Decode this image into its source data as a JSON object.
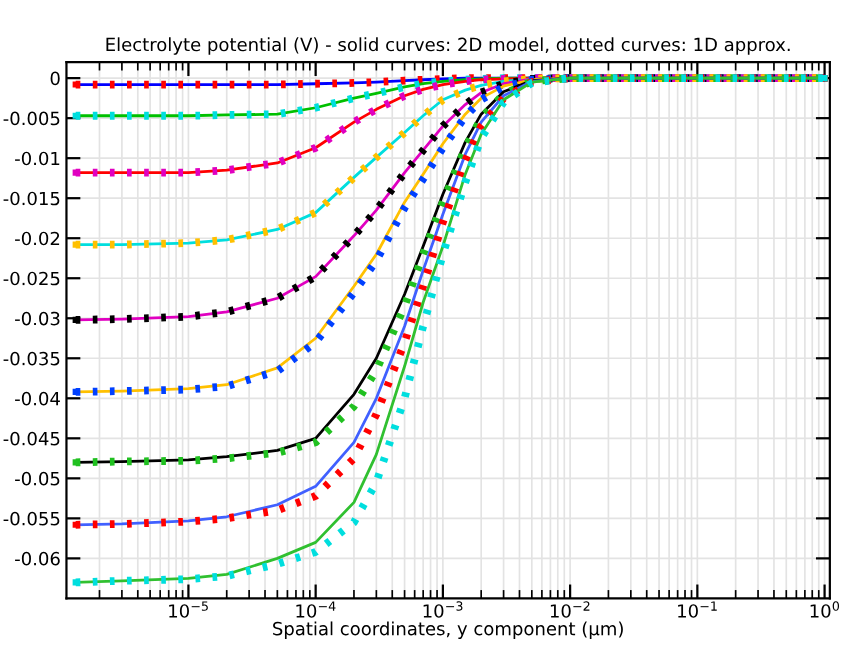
{
  "chart_data": {
    "type": "line",
    "title": "Electrolyte potential (V) - solid curves: 2D model, dotted curves: 1D approx.",
    "xlabel": "Spatial coordinates, y component (µm)",
    "log": "x",
    "grid": true,
    "legend": false,
    "marker": "none",
    "x": [
      1.3e-06,
      3e-06,
      1e-05,
      2e-05,
      5e-05,
      0.0001,
      0.0002,
      0.0003,
      0.0005,
      0.0007,
      0.001,
      0.0015,
      0.002,
      0.003,
      0.005,
      0.01,
      0.1,
      1
    ],
    "xlim": [
      1.1e-06,
      1.1
    ],
    "ylim": [
      -0.065,
      0.002
    ],
    "xticks": [
      {
        "value": 1e-05,
        "label": "10$^{−5}$"
      },
      {
        "value": 0.0001,
        "label": "10$^{−4}$"
      },
      {
        "value": 0.001,
        "label": "10$^{−3}$"
      },
      {
        "value": 0.01,
        "label": "10$^{−2}$"
      },
      {
        "value": 0.1,
        "label": "10$^{−1}$"
      },
      {
        "value": 1,
        "label": "10$^{0}$"
      }
    ],
    "yticks": [
      0,
      -0.005,
      -0.01,
      -0.015,
      -0.02,
      -0.025,
      -0.03,
      -0.035,
      -0.04,
      -0.045,
      -0.05,
      -0.055,
      -0.06
    ],
    "series": [
      {
        "color": "#0000ff",
        "line_style": "solid",
        "values": [
          -0.0008,
          -0.0008,
          -0.0008,
          -0.0008,
          -0.0008,
          -0.0007,
          -0.0006,
          -0.0005,
          -0.0003,
          -0.0002,
          -0.0001,
          0,
          0,
          0,
          0,
          0,
          0,
          0
        ]
      },
      {
        "color": "#ff0000",
        "line_style": "dotted",
        "values": [
          -0.0008,
          -0.0008,
          -0.0008,
          -0.0008,
          -0.0008,
          -0.0007,
          -0.0006,
          -0.0005,
          -0.0003,
          -0.0002,
          -0.0001,
          0,
          0,
          0,
          0,
          0,
          0,
          0
        ]
      },
      {
        "color": "#00c000",
        "line_style": "solid",
        "values": [
          -0.0047,
          -0.0047,
          -0.0047,
          -0.0046,
          -0.0045,
          -0.0037,
          -0.0025,
          -0.0019,
          -0.0011,
          -0.0007,
          -0.0004,
          -0.0002,
          -0.0001,
          0,
          0,
          0,
          0,
          0
        ]
      },
      {
        "color": "#00dede",
        "line_style": "dotted",
        "values": [
          -0.0047,
          -0.0047,
          -0.0047,
          -0.0046,
          -0.0045,
          -0.0037,
          -0.0025,
          -0.0019,
          -0.0011,
          -0.0007,
          -0.0004,
          -0.0002,
          -0.0001,
          0,
          0,
          0,
          0,
          0
        ]
      },
      {
        "color": "#ff0000",
        "line_style": "solid",
        "values": [
          -0.0118,
          -0.0118,
          -0.0118,
          -0.0115,
          -0.0106,
          -0.0087,
          -0.0055,
          -0.0039,
          -0.0022,
          -0.0014,
          -0.0008,
          -0.0004,
          -0.0002,
          -0.0001,
          0,
          0,
          0,
          0
        ]
      },
      {
        "color": "#e000c0",
        "line_style": "dotted",
        "values": [
          -0.0118,
          -0.0118,
          -0.0118,
          -0.0115,
          -0.0106,
          -0.0087,
          -0.0055,
          -0.0039,
          -0.0022,
          -0.0014,
          -0.0008,
          -0.0004,
          -0.0002,
          -0.0001,
          0,
          0,
          0,
          0
        ]
      },
      {
        "color": "#00dede",
        "line_style": "solid",
        "values": [
          -0.0208,
          -0.0208,
          -0.0206,
          -0.0202,
          -0.0189,
          -0.0168,
          -0.0124,
          -0.0099,
          -0.0068,
          -0.0047,
          -0.0027,
          -0.0015,
          -0.0009,
          -0.0004,
          -0.0001,
          0,
          0,
          0
        ]
      },
      {
        "color": "#ffc000",
        "line_style": "dotted",
        "values": [
          -0.0208,
          -0.0208,
          -0.0206,
          -0.0202,
          -0.0189,
          -0.0168,
          -0.0124,
          -0.0099,
          -0.0068,
          -0.0047,
          -0.0027,
          -0.0015,
          -0.0009,
          -0.0004,
          -0.0001,
          0,
          0,
          0
        ]
      },
      {
        "color": "#e000c0",
        "line_style": "solid",
        "values": [
          -0.0302,
          -0.0301,
          -0.0298,
          -0.0292,
          -0.0275,
          -0.0248,
          -0.0197,
          -0.0165,
          -0.0118,
          -0.009,
          -0.006,
          -0.0033,
          -0.0018,
          -0.0007,
          -0.0001,
          0,
          0,
          0
        ]
      },
      {
        "color": "#000000",
        "line_style": "dotted",
        "values": [
          -0.0302,
          -0.0301,
          -0.0298,
          -0.0292,
          -0.0275,
          -0.0248,
          -0.0197,
          -0.0165,
          -0.0118,
          -0.009,
          -0.006,
          -0.0033,
          -0.0018,
          -0.0007,
          -0.0001,
          0,
          0,
          0
        ]
      },
      {
        "color": "#ffc000",
        "line_style": "solid",
        "values": [
          -0.0392,
          -0.0391,
          -0.0388,
          -0.0383,
          -0.0362,
          -0.0325,
          -0.026,
          -0.022,
          -0.0155,
          -0.012,
          -0.0082,
          -0.0045,
          -0.0025,
          -0.001,
          -0.0002,
          0,
          0,
          0
        ]
      },
      {
        "color": "#0040ff",
        "line_style": "dotted",
        "values": [
          -0.0392,
          -0.0391,
          -0.0389,
          -0.0385,
          -0.0366,
          -0.033,
          -0.0268,
          -0.0228,
          -0.0162,
          -0.0126,
          -0.0087,
          -0.0048,
          -0.0027,
          -0.0011,
          -0.0002,
          0,
          0,
          0
        ]
      },
      {
        "color": "#000000",
        "line_style": "solid",
        "values": [
          -0.048,
          -0.0479,
          -0.0477,
          -0.0473,
          -0.0465,
          -0.045,
          -0.0395,
          -0.035,
          -0.027,
          -0.021,
          -0.0145,
          -0.008,
          -0.0045,
          -0.0017,
          -0.0003,
          0,
          0,
          0
        ]
      },
      {
        "color": "#20c020",
        "line_style": "dotted",
        "values": [
          -0.048,
          -0.0479,
          -0.0478,
          -0.0475,
          -0.0468,
          -0.0455,
          -0.041,
          -0.0365,
          -0.0285,
          -0.022,
          -0.0155,
          -0.0087,
          -0.005,
          -0.002,
          -0.0004,
          0,
          0,
          0
        ]
      },
      {
        "color": "#4060ff",
        "line_style": "solid",
        "values": [
          -0.0558,
          -0.0557,
          -0.0553,
          -0.0548,
          -0.0533,
          -0.051,
          -0.0455,
          -0.04,
          -0.031,
          -0.024,
          -0.017,
          -0.0095,
          -0.0055,
          -0.0022,
          -0.0004,
          0,
          0,
          0
        ]
      },
      {
        "color": "#ff0000",
        "line_style": "dotted",
        "values": [
          -0.0558,
          -0.0557,
          -0.0554,
          -0.055,
          -0.054,
          -0.0522,
          -0.0475,
          -0.042,
          -0.033,
          -0.026,
          -0.018,
          -0.0103,
          -0.006,
          -0.0025,
          -0.0005,
          0,
          0,
          0
        ]
      },
      {
        "color": "#30c030",
        "line_style": "solid",
        "values": [
          -0.063,
          -0.0628,
          -0.0625,
          -0.062,
          -0.06,
          -0.058,
          -0.053,
          -0.047,
          -0.036,
          -0.028,
          -0.021,
          -0.012,
          -0.007,
          -0.0027,
          -0.0005,
          0,
          0,
          0
        ]
      },
      {
        "color": "#00dede",
        "line_style": "dotted",
        "values": [
          -0.063,
          -0.0628,
          -0.0626,
          -0.0622,
          -0.0607,
          -0.0592,
          -0.0555,
          -0.0505,
          -0.04,
          -0.031,
          -0.022,
          -0.013,
          -0.0075,
          -0.003,
          -0.0006,
          0,
          0,
          0
        ]
      }
    ]
  }
}
